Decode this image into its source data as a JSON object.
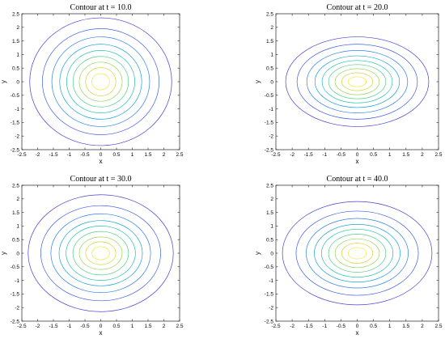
{
  "chart_data": [
    {
      "type": "contour",
      "title": "Contour at  t = 10.0",
      "xlabel": "x",
      "ylabel": "y",
      "xlim": [
        -2.5,
        2.5
      ],
      "ylim": [
        -2.5,
        2.5
      ],
      "xticks": [
        -2.5,
        -2,
        -1.5,
        -1,
        -0.5,
        0,
        0.5,
        1,
        1.5,
        2,
        2.5
      ],
      "yticks": [
        -2.5,
        -2,
        -1.5,
        -1,
        -0.5,
        0,
        0.5,
        1,
        1.5,
        2,
        2.5
      ],
      "xtick_labels": [
        "-2.5",
        "-2",
        "-1.5",
        "-1",
        "-0.5",
        "0",
        "0.5",
        "1",
        "1.5",
        "2",
        "2.5"
      ],
      "ytick_labels": [
        "-2.5",
        "-2",
        "-1.5",
        "-1",
        "-0.5",
        "0",
        "0.5",
        "1",
        "1.5",
        "2",
        "2.5"
      ],
      "contours": [
        {
          "rx": 2.25,
          "ry": 2.35
        },
        {
          "rx": 1.85,
          "ry": 1.95
        },
        {
          "rx": 1.55,
          "ry": 1.65
        },
        {
          "rx": 1.3,
          "ry": 1.38
        },
        {
          "rx": 1.08,
          "ry": 1.15
        },
        {
          "rx": 0.88,
          "ry": 0.93
        },
        {
          "rx": 0.68,
          "ry": 0.72
        },
        {
          "rx": 0.48,
          "ry": 0.52
        },
        {
          "rx": 0.28,
          "ry": 0.3
        }
      ]
    },
    {
      "type": "contour",
      "title": "Contour at  t = 20.0",
      "xlabel": "x",
      "ylabel": "y",
      "xlim": [
        -2.5,
        2.5
      ],
      "ylim": [
        -2.5,
        2.5
      ],
      "xticks": [
        -2.5,
        -2,
        -1.5,
        -1,
        -0.5,
        0,
        0.5,
        1,
        1.5,
        2,
        2.5
      ],
      "yticks": [
        -2.5,
        -2,
        -1.5,
        -1,
        -0.5,
        0,
        0.5,
        1,
        1.5,
        2,
        2.5
      ],
      "xtick_labels": [
        "-2.5",
        "-2",
        "-1.5",
        "-1",
        "-0.5",
        "0",
        "0.5",
        "1",
        "1.5",
        "2",
        "2.5"
      ],
      "ytick_labels": [
        "-2.5",
        "-2",
        "-1.5",
        "-1",
        "-0.5",
        "0",
        "0.5",
        "1",
        "1.5",
        "2",
        "2.5"
      ],
      "contours": [
        {
          "rx": 2.2,
          "ry": 1.65
        },
        {
          "rx": 1.85,
          "ry": 1.38
        },
        {
          "rx": 1.55,
          "ry": 1.15
        },
        {
          "rx": 1.3,
          "ry": 0.95
        },
        {
          "rx": 1.08,
          "ry": 0.78
        },
        {
          "rx": 0.88,
          "ry": 0.63
        },
        {
          "rx": 0.68,
          "ry": 0.48
        },
        {
          "rx": 0.48,
          "ry": 0.33
        },
        {
          "rx": 0.28,
          "ry": 0.18
        }
      ]
    },
    {
      "type": "contour",
      "title": "Contour at  t = 30.0",
      "xlabel": "x",
      "ylabel": "y",
      "xlim": [
        -2.5,
        2.5
      ],
      "ylim": [
        -2.5,
        2.5
      ],
      "xticks": [
        -2.5,
        -2,
        -1.5,
        -1,
        -0.5,
        0,
        0.5,
        1,
        1.5,
        2,
        2.5
      ],
      "yticks": [
        -2.5,
        -2,
        -1.5,
        -1,
        -0.5,
        0,
        0.5,
        1,
        1.5,
        2,
        2.5
      ],
      "xtick_labels": [
        "-2.5",
        "-2",
        "-1.5",
        "-1",
        "-0.5",
        "0",
        "0.5",
        "1",
        "1.5",
        "2",
        "2.5"
      ],
      "ytick_labels": [
        "-2.5",
        "-2",
        "-1.5",
        "-1",
        "-0.5",
        "0",
        "0.5",
        "1",
        "1.5",
        "2",
        "2.5"
      ],
      "contours": [
        {
          "rx": 2.3,
          "ry": 2.15
        },
        {
          "rx": 1.9,
          "ry": 1.75
        },
        {
          "rx": 1.58,
          "ry": 1.45
        },
        {
          "rx": 1.32,
          "ry": 1.2
        },
        {
          "rx": 1.1,
          "ry": 1.0
        },
        {
          "rx": 0.88,
          "ry": 0.8
        },
        {
          "rx": 0.68,
          "ry": 0.6
        },
        {
          "rx": 0.48,
          "ry": 0.42
        },
        {
          "rx": 0.28,
          "ry": 0.24
        }
      ]
    },
    {
      "type": "contour",
      "title": "Contour at  t = 40.0",
      "xlabel": "x",
      "ylabel": "y",
      "xlim": [
        -2.5,
        2.5
      ],
      "ylim": [
        -2.5,
        2.5
      ],
      "xticks": [
        -2.5,
        -2,
        -1.5,
        -1,
        -0.5,
        0,
        0.5,
        1,
        1.5,
        2,
        2.5
      ],
      "yticks": [
        -2.5,
        -2,
        -1.5,
        -1,
        -0.5,
        0,
        0.5,
        1,
        1.5,
        2,
        2.5
      ],
      "xtick_labels": [
        "-2.5",
        "-2",
        "-1.5",
        "-1",
        "-0.5",
        "0",
        "0.5",
        "1",
        "1.5",
        "2",
        "2.5"
      ],
      "ytick_labels": [
        "-2.5",
        "-2",
        "-1.5",
        "-1",
        "-0.5",
        "0",
        "0.5",
        "1",
        "1.5",
        "2",
        "2.5"
      ],
      "contours": [
        {
          "rx": 2.3,
          "ry": 1.9
        },
        {
          "rx": 1.88,
          "ry": 1.55
        },
        {
          "rx": 1.57,
          "ry": 1.28
        },
        {
          "rx": 1.32,
          "ry": 1.06
        },
        {
          "rx": 1.1,
          "ry": 0.88
        },
        {
          "rx": 0.88,
          "ry": 0.7
        },
        {
          "rx": 0.68,
          "ry": 0.53
        },
        {
          "rx": 0.48,
          "ry": 0.37
        },
        {
          "rx": 0.28,
          "ry": 0.21
        }
      ]
    }
  ],
  "colors": {
    "levels": [
      "#4a3fd1",
      "#3f5fe0",
      "#2f80e8",
      "#1ea2d8",
      "#22bfb0",
      "#4fcf84",
      "#98d658",
      "#d8d43a",
      "#f3e63a"
    ]
  }
}
